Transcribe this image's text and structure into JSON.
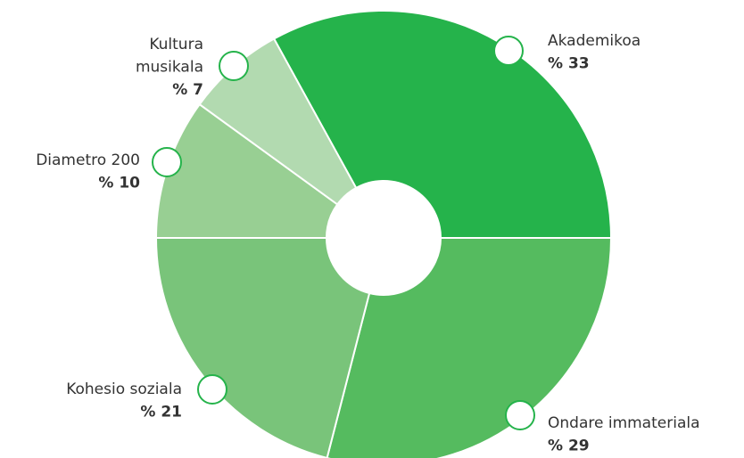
{
  "chart_data": {
    "type": "donut",
    "categories": [
      "Akademikoa",
      "Ondare immateriala",
      "Kohesio soziala",
      "Diametro 200",
      "Kultura musikala"
    ],
    "values": [
      33,
      29,
      21,
      10,
      7
    ],
    "value_labels": [
      "% 33",
      "% 29",
      "% 21",
      "% 10",
      "% 7"
    ],
    "colors": [
      "#25b34b",
      "#55bb5f",
      "#79c47a",
      "#98cf93",
      "#b2dab0"
    ]
  }
}
